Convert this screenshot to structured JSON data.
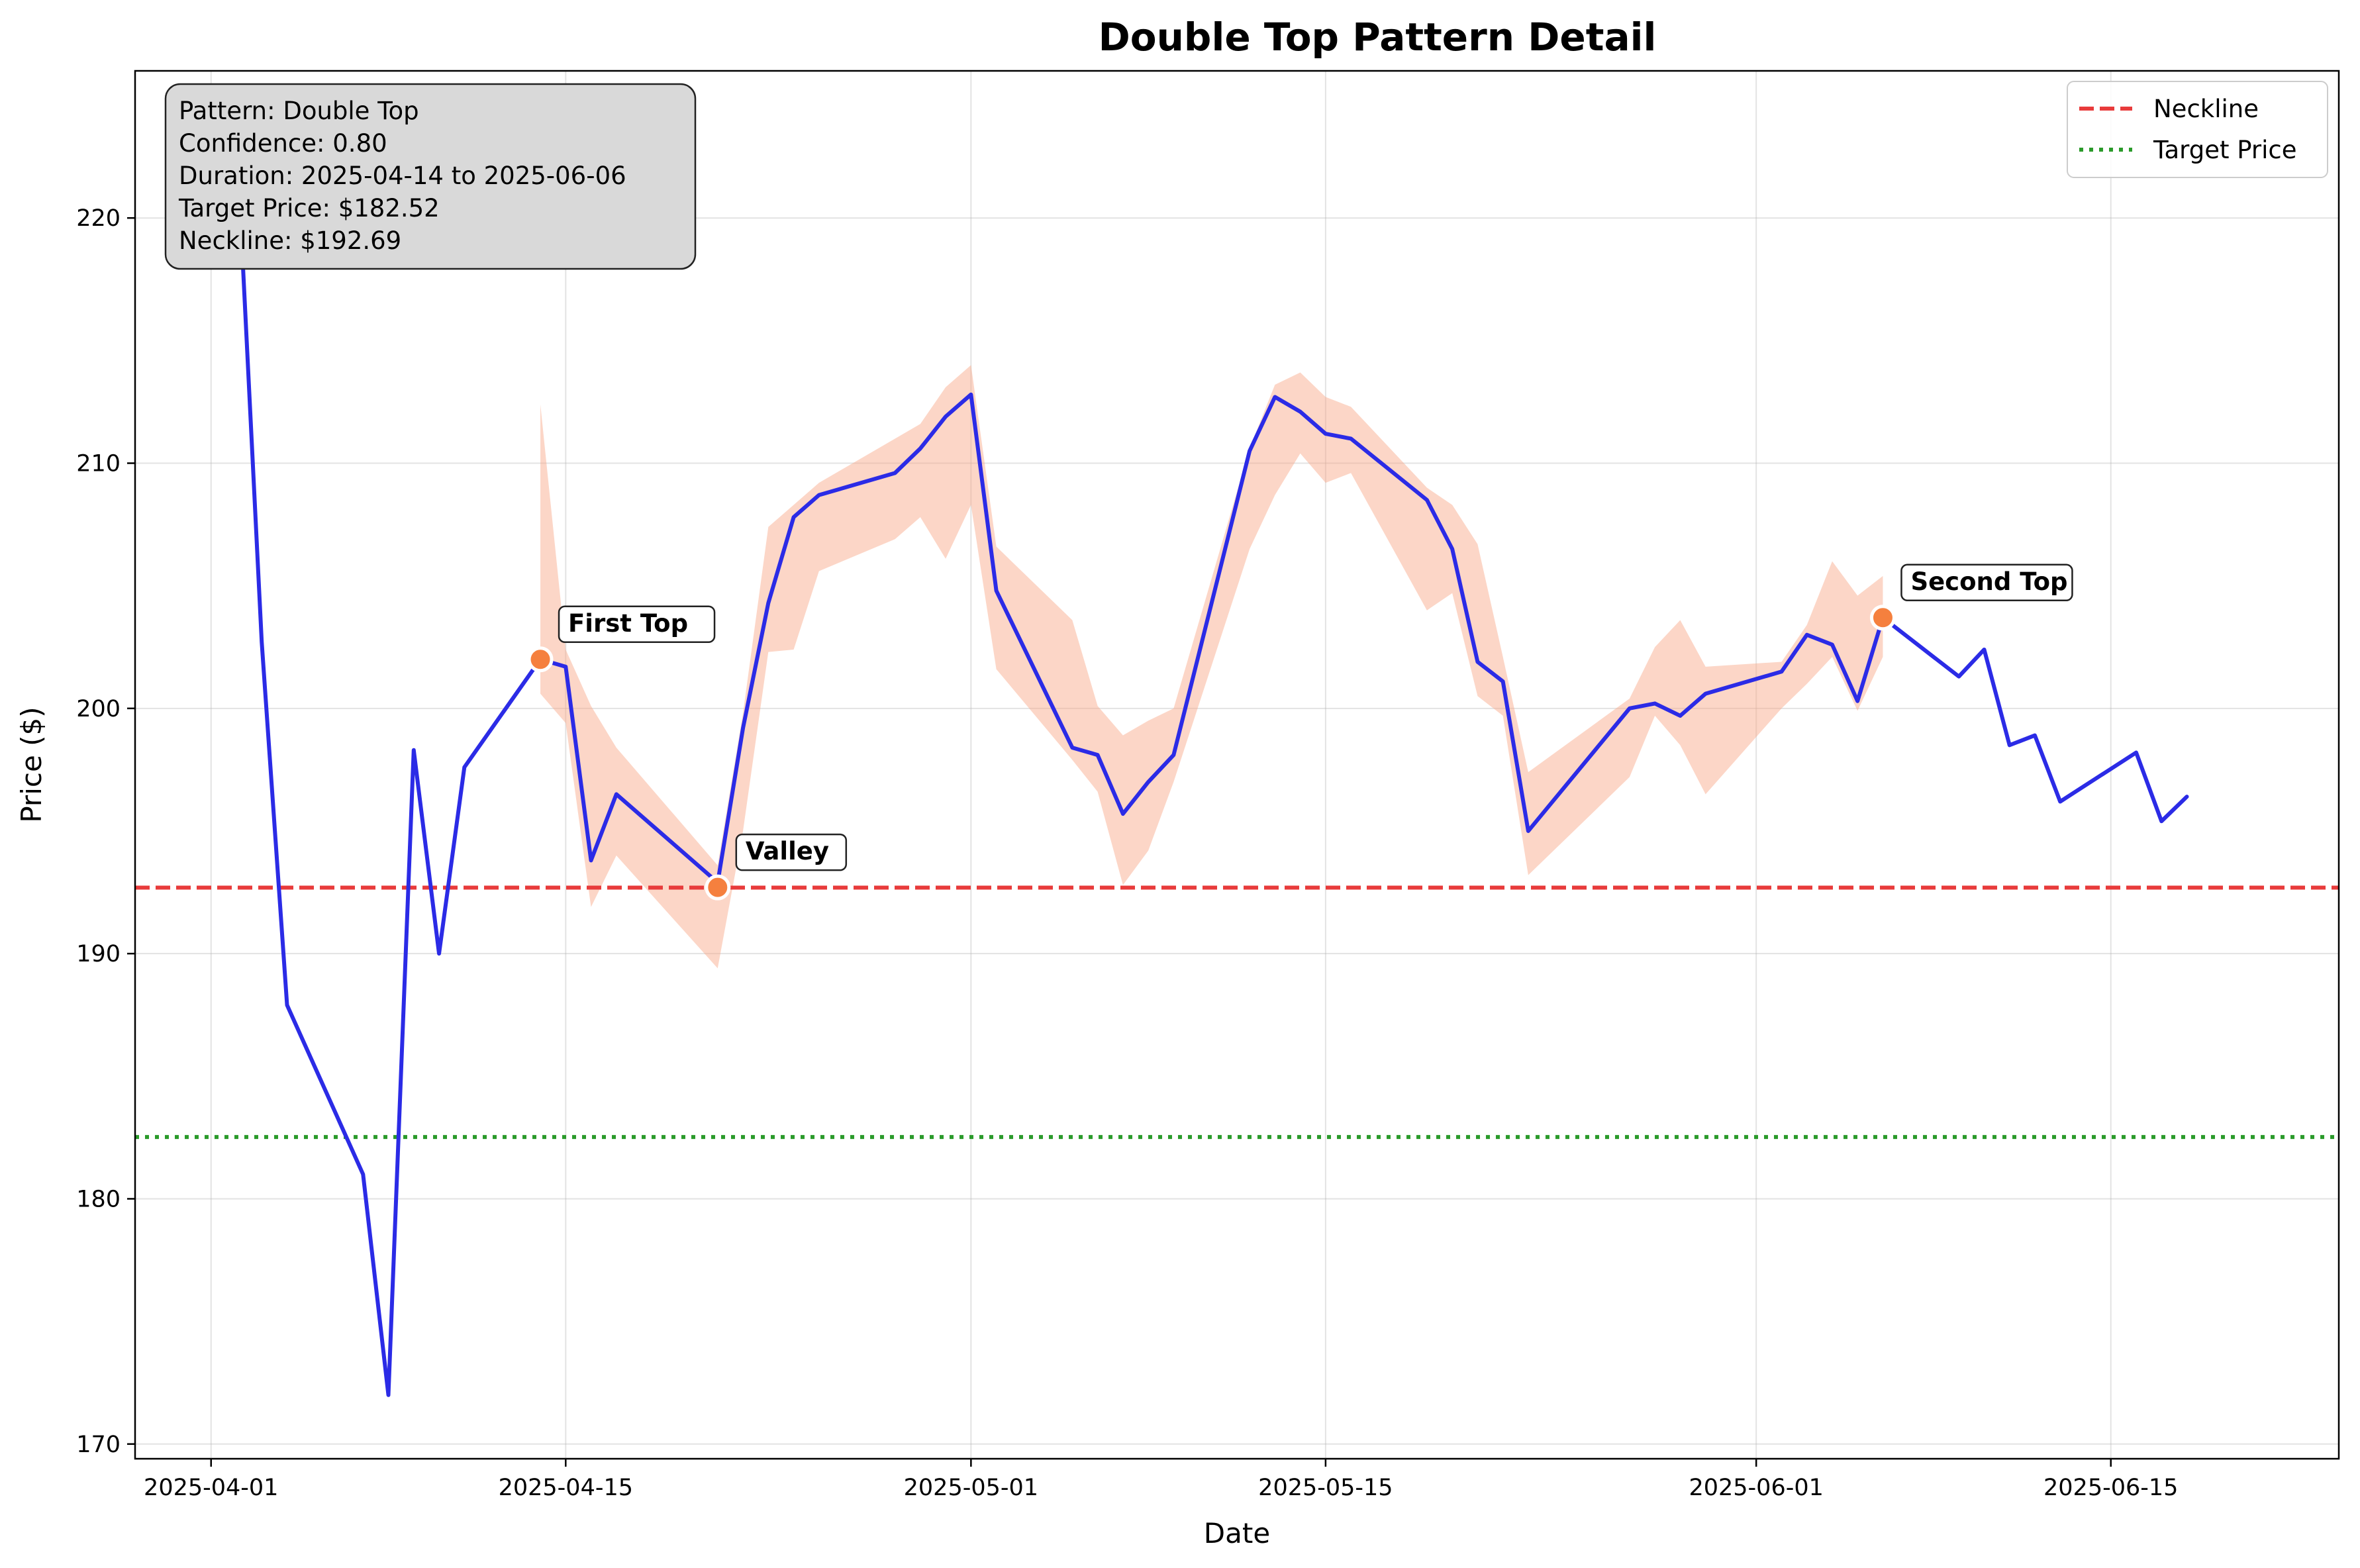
{
  "chart_data": {
    "type": "line",
    "title": "Double Top Pattern Detail",
    "xlabel": "Date",
    "ylabel": "Price ($)",
    "xlim": [
      "2025-03-29",
      "2025-06-24"
    ],
    "ylim": [
      169.4,
      226
    ],
    "x_ticks": [
      "2025-04-01",
      "2025-04-15",
      "2025-05-01",
      "2025-05-15",
      "2025-06-01",
      "2025-06-15"
    ],
    "y_ticks": [
      170,
      180,
      190,
      200,
      210,
      220
    ],
    "grid": true,
    "legend_position": "top-right",
    "series": [
      {
        "name": "",
        "color": "#2b2be6",
        "points": [
          [
            "2025-04-02",
            223.4
          ],
          [
            "2025-04-03",
            202.7
          ],
          [
            "2025-04-04",
            187.9
          ],
          [
            "2025-04-07",
            181.0
          ],
          [
            "2025-04-08",
            172.0
          ],
          [
            "2025-04-09",
            198.3
          ],
          [
            "2025-04-10",
            190.0
          ],
          [
            "2025-04-11",
            197.6
          ],
          [
            "2025-04-14",
            202.0
          ],
          [
            "2025-04-15",
            201.7
          ],
          [
            "2025-04-16",
            193.8
          ],
          [
            "2025-04-17",
            196.5
          ],
          [
            "2025-04-21",
            192.9
          ],
          [
            "2025-04-22",
            199.2
          ],
          [
            "2025-04-23",
            204.3
          ],
          [
            "2025-04-24",
            207.8
          ],
          [
            "2025-04-25",
            208.7
          ],
          [
            "2025-04-28",
            209.6
          ],
          [
            "2025-04-29",
            210.6
          ],
          [
            "2025-04-30",
            211.9
          ],
          [
            "2025-05-01",
            212.8
          ],
          [
            "2025-05-02",
            204.8
          ],
          [
            "2025-05-05",
            198.4
          ],
          [
            "2025-05-06",
            198.1
          ],
          [
            "2025-05-07",
            195.7
          ],
          [
            "2025-05-08",
            197.0
          ],
          [
            "2025-05-09",
            198.1
          ],
          [
            "2025-05-12",
            210.5
          ],
          [
            "2025-05-13",
            212.7
          ],
          [
            "2025-05-14",
            212.1
          ],
          [
            "2025-05-15",
            211.2
          ],
          [
            "2025-05-16",
            211.0
          ],
          [
            "2025-05-19",
            208.5
          ],
          [
            "2025-05-20",
            206.5
          ],
          [
            "2025-05-21",
            201.9
          ],
          [
            "2025-05-22",
            201.1
          ],
          [
            "2025-05-23",
            195.0
          ],
          [
            "2025-05-27",
            200.0
          ],
          [
            "2025-05-28",
            200.2
          ],
          [
            "2025-05-29",
            199.7
          ],
          [
            "2025-05-30",
            200.6
          ],
          [
            "2025-06-02",
            201.5
          ],
          [
            "2025-06-03",
            203.0
          ],
          [
            "2025-06-04",
            202.6
          ],
          [
            "2025-06-05",
            200.3
          ],
          [
            "2025-06-06",
            203.7
          ],
          [
            "2025-06-09",
            201.3
          ],
          [
            "2025-06-10",
            202.4
          ],
          [
            "2025-06-11",
            198.5
          ],
          [
            "2025-06-12",
            198.9
          ],
          [
            "2025-06-13",
            196.2
          ],
          [
            "2025-06-16",
            198.2
          ],
          [
            "2025-06-17",
            195.4
          ],
          [
            "2025-06-18",
            196.4
          ]
        ]
      }
    ],
    "band": {
      "color": "#f9a582",
      "points": [
        [
          "2025-04-14",
          200.6,
          212.4
        ],
        [
          "2025-04-15",
          199.4,
          202.4
        ],
        [
          "2025-04-16",
          191.9,
          200.1
        ],
        [
          "2025-04-17",
          194.0,
          198.4
        ],
        [
          "2025-04-21",
          189.4,
          193.6
        ],
        [
          "2025-04-22",
          195.0,
          199.8
        ],
        [
          "2025-04-23",
          202.3,
          207.4
        ],
        [
          "2025-04-24",
          202.4,
          208.3
        ],
        [
          "2025-04-25",
          205.6,
          209.2
        ],
        [
          "2025-04-28",
          206.9,
          211.0
        ],
        [
          "2025-04-29",
          207.8,
          211.6
        ],
        [
          "2025-04-30",
          206.1,
          213.1
        ],
        [
          "2025-05-01",
          208.3,
          214.0
        ],
        [
          "2025-05-02",
          201.6,
          206.6
        ],
        [
          "2025-05-05",
          197.9,
          203.6
        ],
        [
          "2025-05-06",
          196.6,
          200.1
        ],
        [
          "2025-05-07",
          192.8,
          198.9
        ],
        [
          "2025-05-08",
          194.2,
          199.5
        ],
        [
          "2025-05-09",
          197.0,
          200.0
        ],
        [
          "2025-05-12",
          206.5,
          210.6
        ],
        [
          "2025-05-13",
          208.7,
          213.2
        ],
        [
          "2025-05-14",
          210.4,
          213.7
        ],
        [
          "2025-05-15",
          209.2,
          212.7
        ],
        [
          "2025-05-16",
          209.6,
          212.3
        ],
        [
          "2025-05-19",
          204.0,
          209.0
        ],
        [
          "2025-05-20",
          204.7,
          208.3
        ],
        [
          "2025-05-21",
          200.5,
          206.7
        ],
        [
          "2025-05-22",
          199.7,
          202.1
        ],
        [
          "2025-05-23",
          193.2,
          197.4
        ],
        [
          "2025-05-27",
          197.2,
          200.4
        ],
        [
          "2025-05-28",
          199.7,
          202.5
        ],
        [
          "2025-05-29",
          198.5,
          203.6
        ],
        [
          "2025-05-30",
          196.5,
          201.7
        ],
        [
          "2025-06-02",
          200.0,
          201.9
        ],
        [
          "2025-06-03",
          201.0,
          203.4
        ],
        [
          "2025-06-04",
          202.1,
          206.0
        ],
        [
          "2025-06-05",
          199.9,
          204.6
        ],
        [
          "2025-06-06",
          202.1,
          205.4
        ]
      ]
    },
    "reference_lines": [
      {
        "name": "Neckline",
        "y": 192.69,
        "color": "#e83b3b",
        "style": "dashed"
      },
      {
        "name": "Target Price",
        "y": 182.52,
        "color": "#2a9a2a",
        "style": "dotted"
      }
    ],
    "annotations": [
      {
        "label": "First Top",
        "x": "2025-04-14",
        "y": 202.0
      },
      {
        "label": "Valley",
        "x": "2025-04-21",
        "y": 192.7
      },
      {
        "label": "Second Top",
        "x": "2025-06-06",
        "y": 203.7
      }
    ],
    "marker_color": "#f5803e",
    "info_box": [
      "Pattern: Double Top",
      "Confidence: 0.80",
      "Duration: 2025-04-14 to 2025-06-06",
      "Target Price: $182.52",
      "Neckline: $192.69"
    ]
  }
}
